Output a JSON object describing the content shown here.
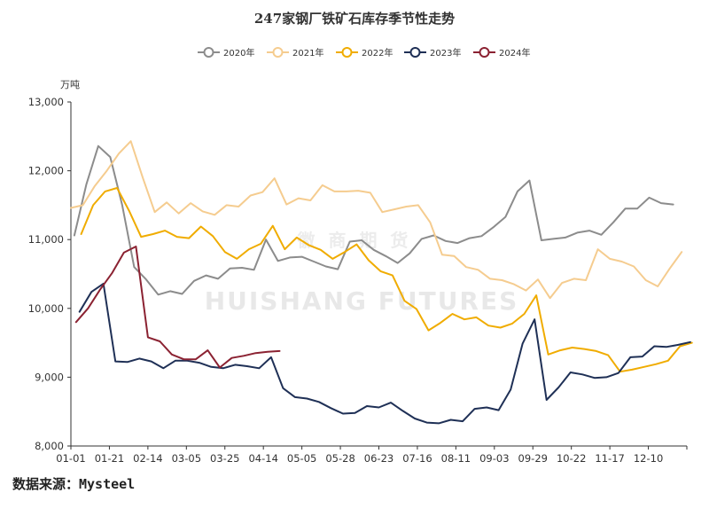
{
  "chart_data": {
    "type": "line",
    "title": "247家钢厂铁矿石库存季节性走势",
    "ylabel": "万吨",
    "ylim": [
      8000,
      13000
    ],
    "yticks": [
      8000,
      9000,
      10000,
      11000,
      12000,
      13000
    ],
    "ytick_labels": [
      "8,000",
      "9,000",
      "10,000",
      "11,000",
      "12,000",
      "13,000"
    ],
    "x_range_days": [
      1,
      361
    ],
    "xtick_labels": [
      "01-01",
      "01-21",
      "02-14",
      "03-05",
      "03-25",
      "04-14",
      "05-05",
      "05-28",
      "06-23",
      "07-16",
      "08-11",
      "09-03",
      "09-29",
      "10-22",
      "11-17",
      "12-10"
    ],
    "grid": false,
    "legend_position": "top-center",
    "series": [
      {
        "name": "2020年",
        "color": "#8c8c8c",
        "x": [
          3,
          10,
          17,
          24,
          31,
          38,
          45,
          52,
          59,
          66,
          73,
          80,
          87,
          94,
          101,
          108,
          115,
          122,
          129,
          136,
          143,
          150,
          157,
          164,
          171,
          178,
          185,
          192,
          199,
          206,
          213,
          220,
          227,
          234,
          241,
          248,
          255,
          262,
          269,
          276,
          283,
          290,
          297,
          304,
          311,
          318,
          325,
          332,
          339,
          346,
          353
        ],
        "values": [
          11060,
          11800,
          12360,
          12200,
          11500,
          10600,
          10420,
          10200,
          10250,
          10210,
          10400,
          10480,
          10430,
          10580,
          10590,
          10560,
          11000,
          10690,
          10740,
          10750,
          10680,
          10610,
          10570,
          10970,
          10990,
          10850,
          10760,
          10660,
          10800,
          11010,
          11060,
          10980,
          10950,
          11020,
          11050,
          11180,
          11330,
          11700,
          11860,
          10990,
          11010,
          11030,
          11100,
          11130,
          11070,
          11250,
          11450,
          11450,
          11610,
          11530,
          11510
        ]
      },
      {
        "name": "2021年",
        "color": "#f5cc8f",
        "x": [
          1,
          8,
          15,
          22,
          29,
          36,
          43,
          50,
          57,
          64,
          71,
          78,
          85,
          92,
          99,
          106,
          113,
          120,
          127,
          134,
          141,
          148,
          155,
          162,
          169,
          176,
          183,
          190,
          197,
          204,
          211,
          218,
          225,
          232,
          239,
          246,
          253,
          260,
          267,
          274,
          281,
          288,
          295,
          302,
          309,
          316,
          323,
          330,
          337,
          344,
          351,
          358
        ],
        "values": [
          11460,
          11500,
          11780,
          12000,
          12250,
          12430,
          11900,
          11400,
          11540,
          11380,
          11530,
          11410,
          11360,
          11500,
          11480,
          11640,
          11690,
          11890,
          11510,
          11600,
          11570,
          11790,
          11700,
          11700,
          11710,
          11680,
          11400,
          11440,
          11480,
          11500,
          11250,
          10780,
          10760,
          10600,
          10560,
          10430,
          10410,
          10350,
          10260,
          10420,
          10150,
          10370,
          10430,
          10410,
          10860,
          10720,
          10680,
          10610,
          10410,
          10320,
          10580,
          10820
        ]
      },
      {
        "name": "2022年",
        "color": "#f0ac00",
        "x": [
          7,
          14,
          21,
          28,
          35,
          42,
          49,
          56,
          63,
          70,
          77,
          84,
          91,
          98,
          105,
          112,
          119,
          126,
          133,
          140,
          147,
          154,
          161,
          168,
          175,
          182,
          189,
          196,
          203,
          210,
          217,
          224,
          231,
          238,
          245,
          252,
          259,
          266,
          273,
          280,
          287,
          294,
          301,
          308,
          315,
          322,
          329,
          336,
          343,
          350,
          357,
          364
        ],
        "values": [
          11080,
          11500,
          11700,
          11750,
          11420,
          11040,
          11080,
          11130,
          11040,
          11020,
          11190,
          11050,
          10820,
          10720,
          10860,
          10940,
          11200,
          10860,
          11030,
          10920,
          10850,
          10720,
          10820,
          10930,
          10700,
          10540,
          10480,
          10110,
          9990,
          9680,
          9790,
          9920,
          9840,
          9870,
          9750,
          9720,
          9780,
          9920,
          10190,
          9330,
          9390,
          9430,
          9410,
          9380,
          9320,
          9080,
          9110,
          9150,
          9190,
          9240,
          9450,
          9500
        ]
      },
      {
        "name": "2023年",
        "color": "#1f3056",
        "x": [
          6,
          13,
          20,
          27,
          34,
          41,
          48,
          55,
          62,
          69,
          76,
          83,
          90,
          97,
          104,
          111,
          118,
          125,
          132,
          139,
          146,
          153,
          160,
          167,
          174,
          181,
          188,
          195,
          202,
          209,
          216,
          223,
          230,
          237,
          244,
          251,
          258,
          265,
          272,
          279,
          286,
          293,
          300,
          307,
          314,
          321,
          328,
          335,
          342,
          349,
          356,
          363
        ],
        "values": [
          9950,
          10240,
          10360,
          9230,
          9220,
          9270,
          9230,
          9130,
          9240,
          9240,
          9210,
          9150,
          9130,
          9180,
          9160,
          9130,
          9290,
          8840,
          8710,
          8690,
          8640,
          8550,
          8470,
          8480,
          8580,
          8560,
          8630,
          8510,
          8400,
          8340,
          8330,
          8380,
          8360,
          8540,
          8560,
          8520,
          8820,
          9490,
          9840,
          8670,
          8850,
          9070,
          9040,
          8990,
          9000,
          9060,
          9290,
          9300,
          9450,
          9440,
          9470,
          9510
        ]
      },
      {
        "name": "2024年",
        "color": "#8b2232",
        "x": [
          4,
          11,
          18,
          25,
          32,
          39,
          46,
          53,
          60,
          67,
          74,
          81,
          88,
          95,
          102,
          109,
          116,
          123
        ],
        "values": [
          9800,
          10000,
          10270,
          10510,
          10810,
          10900,
          9580,
          9520,
          9330,
          9260,
          9260,
          9390,
          9140,
          9280,
          9310,
          9350,
          9370,
          9380
        ]
      }
    ]
  },
  "watermark": {
    "cn": "徽 商 期 货",
    "en": "HUISHANG FUTURES"
  },
  "source_text": "数据来源：Mysteel"
}
